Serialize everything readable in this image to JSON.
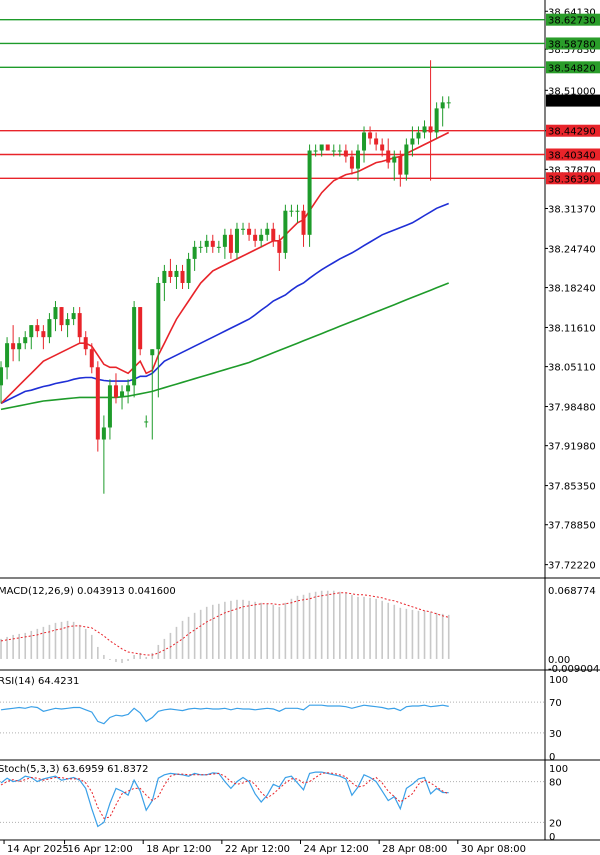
{
  "main": {
    "price_ticks": [
      "38.64130",
      "38.57830",
      "38.51000",
      "38.44290",
      "38.37870",
      "38.31370",
      "38.24740",
      "38.18240",
      "38.11610",
      "38.05110",
      "37.98480",
      "37.91980",
      "37.85350",
      "37.78850",
      "37.72220"
    ],
    "levels": [
      {
        "price": 38.6273,
        "label": "38.62730",
        "color": "#1e9b2a",
        "bg": "#2a9d2a"
      },
      {
        "price": 38.5878,
        "label": "38.58780",
        "color": "#1e9b2a",
        "bg": "#2a9d2a"
      },
      {
        "price": 38.5482,
        "label": "38.54820",
        "color": "#1e9b2a",
        "bg": "#2a9d2a"
      },
      {
        "price": 38.4429,
        "label": "38.44290",
        "color": "#e8242a",
        "bg": "#e8242a"
      },
      {
        "price": 38.4034,
        "label": "38.40340",
        "color": "#e8242a",
        "bg": "#e8242a"
      },
      {
        "price": 38.3639,
        "label": "38.36390",
        "color": "#e8242a",
        "bg": "#e8242a"
      }
    ],
    "current_price": {
      "price": 38.49294,
      "label": "38.49294"
    }
  },
  "chart_data": [
    {
      "type": "candlestick",
      "panel": "price",
      "y_range": [
        37.7,
        38.66
      ],
      "ohlc": [
        [
          38.02,
          38.06,
          37.99,
          38.05
        ],
        [
          38.05,
          38.1,
          38.03,
          38.09
        ],
        [
          38.09,
          38.12,
          38.06,
          38.08
        ],
        [
          38.08,
          38.1,
          38.06,
          38.09
        ],
        [
          38.09,
          38.11,
          38.08,
          38.1
        ],
        [
          38.1,
          38.12,
          38.08,
          38.12
        ],
        [
          38.12,
          38.13,
          38.1,
          38.11
        ],
        [
          38.11,
          38.12,
          38.08,
          38.1
        ],
        [
          38.1,
          38.14,
          38.09,
          38.13
        ],
        [
          38.13,
          38.16,
          38.11,
          38.15
        ],
        [
          38.15,
          38.15,
          38.11,
          38.12
        ],
        [
          38.12,
          38.14,
          38.1,
          38.13
        ],
        [
          38.13,
          38.15,
          38.12,
          38.14
        ],
        [
          38.14,
          38.15,
          38.09,
          38.1
        ],
        [
          38.1,
          38.11,
          38.07,
          38.08
        ],
        [
          38.08,
          38.09,
          38.04,
          38.05
        ],
        [
          38.05,
          38.06,
          37.91,
          37.93
        ],
        [
          37.93,
          37.97,
          37.84,
          37.95
        ],
        [
          37.95,
          38.03,
          37.93,
          38.02
        ],
        [
          38.02,
          38.04,
          37.99,
          38.0
        ],
        [
          38.0,
          38.02,
          37.98,
          38.01
        ],
        [
          38.01,
          38.03,
          37.99,
          38.02
        ],
        [
          38.02,
          38.16,
          38.0,
          38.15
        ],
        [
          38.15,
          38.15,
          38.07,
          38.08
        ],
        [
          37.96,
          37.97,
          37.95,
          37.96
        ],
        [
          38.07,
          38.08,
          37.93,
          38.08
        ],
        [
          38.08,
          38.2,
          38.0,
          38.19
        ],
        [
          38.19,
          38.22,
          38.16,
          38.21
        ],
        [
          38.21,
          38.23,
          38.19,
          38.2
        ],
        [
          38.2,
          38.22,
          38.18,
          38.21
        ],
        [
          38.21,
          38.22,
          38.18,
          38.19
        ],
        [
          38.19,
          38.24,
          38.18,
          38.23
        ],
        [
          38.23,
          38.26,
          38.21,
          38.25
        ],
        [
          38.25,
          38.26,
          38.24,
          38.25
        ],
        [
          38.25,
          38.27,
          38.24,
          38.26
        ],
        [
          38.26,
          38.27,
          38.24,
          38.25
        ],
        [
          38.25,
          38.26,
          38.24,
          38.25
        ],
        [
          38.25,
          38.28,
          38.23,
          38.27
        ],
        [
          38.27,
          38.28,
          38.23,
          38.24
        ],
        [
          38.24,
          38.29,
          38.23,
          38.28
        ],
        [
          38.28,
          38.29,
          38.27,
          38.28
        ],
        [
          38.28,
          38.29,
          38.26,
          38.27
        ],
        [
          38.27,
          38.28,
          38.25,
          38.26
        ],
        [
          38.26,
          38.28,
          38.25,
          38.27
        ],
        [
          38.27,
          38.29,
          38.26,
          38.28
        ],
        [
          38.28,
          38.29,
          38.25,
          38.26
        ],
        [
          38.26,
          38.27,
          38.21,
          38.24
        ],
        [
          38.24,
          38.32,
          38.23,
          38.31
        ],
        [
          38.31,
          38.32,
          38.3,
          38.31
        ],
        [
          38.31,
          38.32,
          38.29,
          38.31
        ],
        [
          38.31,
          38.32,
          38.25,
          38.27
        ],
        [
          38.27,
          38.42,
          38.25,
          38.41
        ],
        [
          38.41,
          38.42,
          38.4,
          38.41
        ],
        [
          38.41,
          38.42,
          38.4,
          38.42
        ],
        [
          38.42,
          38.42,
          38.41,
          38.41
        ],
        [
          38.41,
          38.42,
          38.4,
          38.41
        ],
        [
          38.41,
          38.42,
          38.4,
          38.41
        ],
        [
          38.41,
          38.42,
          38.39,
          38.4
        ],
        [
          38.4,
          38.41,
          38.37,
          38.38
        ],
        [
          38.38,
          38.42,
          38.36,
          38.41
        ],
        [
          38.41,
          38.45,
          38.39,
          38.44
        ],
        [
          38.44,
          38.45,
          38.42,
          38.43
        ],
        [
          38.43,
          38.44,
          38.41,
          38.42
        ],
        [
          38.42,
          38.43,
          38.4,
          38.41
        ],
        [
          38.41,
          38.43,
          38.38,
          38.39
        ],
        [
          38.39,
          38.41,
          38.36,
          38.4
        ],
        [
          38.4,
          38.41,
          38.35,
          38.37
        ],
        [
          38.37,
          38.43,
          38.36,
          38.42
        ],
        [
          38.42,
          38.45,
          38.4,
          38.43
        ],
        [
          38.43,
          38.45,
          38.42,
          38.44
        ],
        [
          38.44,
          38.46,
          38.43,
          38.45
        ],
        [
          38.45,
          38.56,
          38.36,
          38.44
        ],
        [
          38.44,
          38.49,
          38.43,
          38.48
        ],
        [
          38.48,
          38.5,
          38.45,
          38.49
        ],
        [
          38.49,
          38.5,
          38.48,
          38.49
        ]
      ],
      "ma_fast": [
        37.99,
        38.0,
        38.01,
        38.02,
        38.03,
        38.04,
        38.05,
        38.06,
        38.065,
        38.07,
        38.075,
        38.08,
        38.085,
        38.09,
        38.09,
        38.085,
        38.07,
        38.055,
        38.05,
        38.05,
        38.045,
        38.04,
        38.05,
        38.06,
        38.04,
        38.045,
        38.07,
        38.09,
        38.11,
        38.13,
        38.145,
        38.16,
        38.175,
        38.19,
        38.2,
        38.21,
        38.215,
        38.22,
        38.225,
        38.23,
        38.235,
        38.24,
        38.245,
        38.25,
        38.255,
        38.26,
        38.26,
        38.27,
        38.28,
        38.29,
        38.295,
        38.31,
        38.325,
        38.34,
        38.35,
        38.36,
        38.365,
        38.37,
        38.372,
        38.375,
        38.38,
        38.385,
        38.39,
        38.392,
        38.395,
        38.398,
        38.4,
        38.405,
        38.41,
        38.415,
        38.42,
        38.425,
        38.43,
        38.435,
        38.44
      ],
      "ma_mid": [
        37.99,
        37.995,
        38.0,
        38.005,
        38.01,
        38.012,
        38.015,
        38.018,
        38.02,
        38.023,
        38.025,
        38.027,
        38.03,
        38.032,
        38.033,
        38.033,
        38.03,
        38.028,
        38.027,
        38.027,
        38.027,
        38.027,
        38.03,
        38.035,
        38.035,
        38.04,
        38.05,
        38.06,
        38.065,
        38.07,
        38.075,
        38.08,
        38.085,
        38.09,
        38.095,
        38.1,
        38.105,
        38.11,
        38.115,
        38.12,
        38.125,
        38.13,
        38.137,
        38.145,
        38.152,
        38.16,
        38.165,
        38.17,
        38.178,
        38.185,
        38.19,
        38.198,
        38.205,
        38.212,
        38.218,
        38.224,
        38.23,
        38.235,
        38.24,
        38.246,
        38.252,
        38.258,
        38.264,
        38.27,
        38.274,
        38.278,
        38.282,
        38.286,
        38.29,
        38.296,
        38.302,
        38.308,
        38.314,
        38.318,
        38.322
      ],
      "ma_slow": [
        37.98,
        37.982,
        37.984,
        37.986,
        37.988,
        37.99,
        37.992,
        37.994,
        37.995,
        37.996,
        37.997,
        37.998,
        37.999,
        38.0,
        38.0,
        38.0,
        38.0,
        38.0,
        38.0,
        38.0,
        38.001,
        38.002,
        38.004,
        38.006,
        38.008,
        38.01,
        38.013,
        38.016,
        38.019,
        38.022,
        38.025,
        38.028,
        38.031,
        38.034,
        38.037,
        38.04,
        38.043,
        38.046,
        38.049,
        38.052,
        38.055,
        38.058,
        38.062,
        38.066,
        38.07,
        38.074,
        38.078,
        38.082,
        38.086,
        38.09,
        38.094,
        38.098,
        38.102,
        38.106,
        38.11,
        38.114,
        38.118,
        38.122,
        38.126,
        38.13,
        38.134,
        38.138,
        38.142,
        38.146,
        38.15,
        38.154,
        38.158,
        38.162,
        38.166,
        38.17,
        38.174,
        38.178,
        38.182,
        38.186,
        38.19
      ]
    },
    {
      "type": "bar",
      "panel": "macd",
      "title": "MACD(12,26,9) 0.043913 0.041600",
      "y_labels": [
        "0.068774",
        "0.00",
        "-0.009004"
      ],
      "y_range": [
        -0.009004,
        0.068774
      ],
      "values": [
        0.02,
        0.022,
        0.024,
        0.025,
        0.026,
        0.028,
        0.03,
        0.032,
        0.034,
        0.036,
        0.037,
        0.038,
        0.037,
        0.034,
        0.03,
        0.024,
        0.012,
        0.004,
        -0.001,
        -0.003,
        -0.004,
        -0.002,
        0.004,
        0.006,
        0.002,
        0.006,
        0.014,
        0.02,
        0.026,
        0.032,
        0.038,
        0.042,
        0.046,
        0.049,
        0.052,
        0.054,
        0.055,
        0.057,
        0.058,
        0.059,
        0.059,
        0.058,
        0.057,
        0.056,
        0.055,
        0.054,
        0.052,
        0.056,
        0.06,
        0.063,
        0.064,
        0.066,
        0.067,
        0.068,
        0.068,
        0.068,
        0.067,
        0.066,
        0.064,
        0.062,
        0.062,
        0.061,
        0.06,
        0.058,
        0.056,
        0.054,
        0.051,
        0.05,
        0.049,
        0.048,
        0.048,
        0.047,
        0.046,
        0.045,
        0.044
      ],
      "signal": [
        0.018,
        0.019,
        0.02,
        0.021,
        0.022,
        0.023,
        0.024,
        0.026,
        0.027,
        0.029,
        0.03,
        0.032,
        0.033,
        0.033,
        0.032,
        0.031,
        0.027,
        0.023,
        0.018,
        0.014,
        0.01,
        0.007,
        0.006,
        0.005,
        0.004,
        0.004,
        0.006,
        0.009,
        0.012,
        0.016,
        0.02,
        0.025,
        0.029,
        0.033,
        0.037,
        0.04,
        0.043,
        0.046,
        0.048,
        0.05,
        0.052,
        0.053,
        0.054,
        0.055,
        0.055,
        0.055,
        0.054,
        0.055,
        0.056,
        0.058,
        0.059,
        0.06,
        0.062,
        0.063,
        0.064,
        0.065,
        0.066,
        0.066,
        0.065,
        0.064,
        0.064,
        0.063,
        0.062,
        0.061,
        0.059,
        0.058,
        0.056,
        0.054,
        0.052,
        0.05,
        0.048,
        0.047,
        0.045,
        0.043,
        0.0416
      ]
    },
    {
      "type": "line",
      "panel": "rsi",
      "title": "RSI(14) 64.4231",
      "y_labels": [
        "100",
        "70",
        "30",
        "0"
      ],
      "y_range": [
        0,
        100
      ],
      "levels": [
        70,
        30
      ],
      "values": [
        60,
        61,
        62,
        63,
        62,
        64,
        63,
        58,
        60,
        62,
        61,
        62,
        63,
        63,
        60,
        57,
        45,
        42,
        50,
        53,
        52,
        54,
        62,
        56,
        45,
        50,
        58,
        60,
        61,
        60,
        59,
        61,
        62,
        61,
        62,
        61,
        61,
        62,
        60,
        62,
        61,
        61,
        60,
        61,
        62,
        61,
        58,
        62,
        62,
        62,
        60,
        66,
        66,
        66,
        65,
        65,
        65,
        64,
        62,
        64,
        66,
        65,
        64,
        63,
        61,
        62,
        59,
        64,
        65,
        65,
        66,
        64,
        65,
        66,
        64.4
      ]
    },
    {
      "type": "line",
      "panel": "stoch",
      "title": "Stoch(5,3,3) 63.6959 61.8372",
      "y_labels": [
        "100",
        "80",
        "20",
        "0"
      ],
      "y_range": [
        0,
        100
      ],
      "levels": [
        80,
        20
      ],
      "k": [
        78,
        85,
        80,
        82,
        88,
        86,
        80,
        84,
        86,
        88,
        82,
        84,
        86,
        82,
        70,
        40,
        14,
        20,
        48,
        70,
        66,
        60,
        82,
        66,
        38,
        52,
        85,
        90,
        92,
        91,
        90,
        88,
        92,
        90,
        90,
        93,
        92,
        80,
        70,
        80,
        86,
        80,
        62,
        50,
        60,
        76,
        72,
        86,
        88,
        78,
        68,
        92,
        94,
        94,
        92,
        90,
        88,
        84,
        60,
        72,
        90,
        86,
        80,
        66,
        52,
        58,
        40,
        70,
        76,
        84,
        86,
        62,
        70,
        64,
        63.7
      ],
      "d": [
        75,
        80,
        83,
        80,
        83,
        86,
        85,
        82,
        84,
        86,
        86,
        84,
        84,
        84,
        78,
        65,
        42,
        26,
        28,
        46,
        62,
        66,
        70,
        70,
        60,
        52,
        58,
        75,
        88,
        91,
        91,
        90,
        90,
        90,
        90,
        91,
        92,
        88,
        80,
        76,
        78,
        82,
        76,
        64,
        56,
        62,
        70,
        78,
        84,
        84,
        78,
        80,
        86,
        92,
        93,
        92,
        90,
        87,
        78,
        72,
        74,
        82,
        86,
        78,
        66,
        58,
        50,
        56,
        62,
        76,
        82,
        78,
        72,
        66,
        61.8
      ]
    }
  ],
  "x_axis": {
    "labels": [
      {
        "text": "14 Apr 2025",
        "bar": 1
      },
      {
        "text": "16 Apr 12:00",
        "bar": 11
      },
      {
        "text": "18 Apr 12:00",
        "bar": 24
      },
      {
        "text": "22 Apr 12:00",
        "bar": 37
      },
      {
        "text": "24 Apr 12:00",
        "bar": 50
      },
      {
        "text": "28 Apr 08:00",
        "bar": 63
      },
      {
        "text": "30 Apr 08:00",
        "bar": 76
      }
    ]
  },
  "colors": {
    "bull": "#1e9b2a",
    "bear": "#e8242a",
    "ma_fast": "#e8242a",
    "ma_mid": "#1f2fd6",
    "ma_slow": "#1e9b2a",
    "macd_hist": "#c8c8c8",
    "macd_signal": "#e8242a",
    "rsi": "#3aa0e8",
    "stoch_k": "#3aa0e8",
    "stoch_d": "#e8242a",
    "grid": "#d0d0d0",
    "label_current": "#000000"
  }
}
